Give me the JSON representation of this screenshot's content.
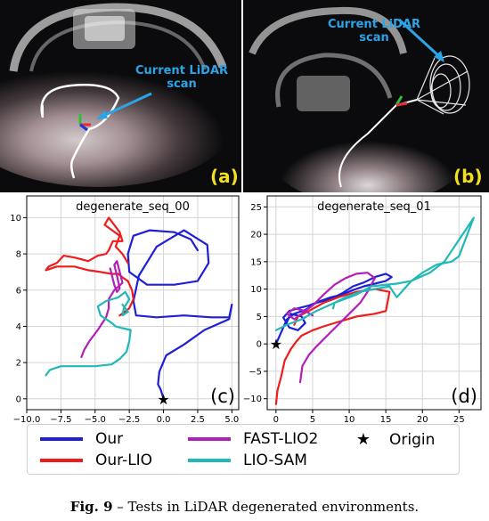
{
  "photos": {
    "a": {
      "scan_label_line1": "Current LiDAR",
      "scan_label_line2": "scan",
      "letter": "(a)"
    },
    "b": {
      "scan_label_line1": "Current LiDAR",
      "scan_label_line2": "scan",
      "letter": "(b)"
    }
  },
  "colors": {
    "Our": "#1f1fd6",
    "Our-LIO": "#ee1c1c",
    "FAST-LIO2": "#b21fb8",
    "LIO-SAM": "#22b8b8",
    "label_blue": "#2aa5e8",
    "letter_yellow": "#f2df20"
  },
  "chart_data": [
    {
      "type": "line",
      "title": "degenerate_seq_00",
      "panel_label": "(c)",
      "xlim": [
        -10,
        5.5
      ],
      "ylim": [
        -0.6,
        11.2
      ],
      "xticks": [
        -10.0,
        -7.5,
        -5.0,
        -2.5,
        0.0,
        2.5,
        5.0
      ],
      "xtick_labels": [
        "−10.0",
        "−7.5",
        "−5.0",
        "−2.5",
        "0.0",
        "2.5",
        "5.0"
      ],
      "yticks": [
        0,
        2,
        4,
        6,
        8,
        10
      ],
      "grid": true,
      "series": [
        {
          "name": "Our",
          "x": [
            0.0,
            -0.2,
            -0.4,
            -0.3,
            0.2,
            1.5,
            3.0,
            4.8,
            5.0,
            4.8,
            3.5,
            1.5,
            -0.5,
            -2.0,
            -2.2,
            -1.8,
            -0.5,
            1.5,
            3.2,
            3.3,
            2.5,
            0.8,
            -1.2,
            -2.5,
            -2.6,
            -2.2,
            -1.0,
            0.8,
            2.0,
            2.5
          ],
          "y": [
            0.0,
            0.5,
            0.8,
            1.5,
            2.4,
            3.0,
            3.8,
            4.4,
            5.2,
            4.5,
            4.5,
            4.6,
            4.5,
            4.6,
            5.4,
            6.8,
            8.4,
            9.3,
            8.5,
            7.5,
            6.5,
            6.3,
            6.3,
            7.0,
            8.0,
            9.0,
            9.3,
            9.2,
            8.8,
            8.2
          ]
        },
        {
          "name": "Our-LIO",
          "x": [
            -2.6,
            -3.0,
            -3.5,
            -3.2,
            -4.3,
            -4.0,
            -3.2,
            -3.0,
            -3.7,
            -4.0,
            -4.2,
            -4.8,
            -5.5,
            -6.5,
            -7.3,
            -7.8,
            -8.4,
            -8.6,
            -7.8,
            -6.5,
            -5.5,
            -4.6,
            -3.8,
            -3.3,
            -3.0,
            -2.6,
            -2.3,
            -2.2,
            -2.5,
            -3.2
          ],
          "y": [
            7.5,
            8.0,
            8.4,
            9.0,
            9.6,
            10.0,
            9.2,
            8.7,
            8.7,
            8.2,
            8.0,
            7.9,
            7.6,
            7.8,
            7.9,
            7.5,
            7.3,
            7.1,
            7.3,
            7.3,
            7.1,
            7.0,
            6.9,
            6.9,
            6.7,
            6.5,
            6.0,
            5.5,
            5.0,
            4.6
          ]
        },
        {
          "name": "FAST-LIO2",
          "x": [
            -6.0,
            -5.8,
            -5.4,
            -4.8,
            -4.2,
            -4.0,
            -4.0,
            -3.6,
            -3.0,
            -3.2,
            -3.4,
            -3.6,
            -3.4,
            -3.2,
            -3.4,
            -3.6,
            -3.9
          ],
          "y": [
            2.3,
            2.7,
            3.2,
            3.8,
            4.5,
            5.0,
            5.5,
            6.0,
            6.4,
            7.0,
            7.6,
            7.4,
            6.8,
            6.1,
            5.9,
            6.3,
            7.2
          ]
        },
        {
          "name": "LIO-SAM",
          "x": [
            -8.6,
            -8.3,
            -7.5,
            -6.5,
            -5.0,
            -3.8,
            -3.2,
            -2.7,
            -2.5,
            -2.4,
            -3.0,
            -3.5,
            -3.8,
            -4.6,
            -4.8,
            -4.2,
            -3.3,
            -2.8,
            -2.5,
            -2.9,
            -3.0,
            -2.6,
            -3.0
          ],
          "y": [
            1.3,
            1.6,
            1.8,
            1.8,
            1.8,
            1.9,
            2.2,
            2.6,
            3.2,
            3.8,
            3.9,
            4.0,
            4.2,
            4.6,
            5.1,
            5.4,
            5.6,
            5.9,
            5.5,
            5.0,
            4.6,
            4.8,
            5.2
          ]
        }
      ],
      "markers": [
        {
          "name": "Origin",
          "x": 0,
          "y": 0
        }
      ]
    },
    {
      "type": "line",
      "title": "degenerate_seq_01",
      "panel_label": "(d)",
      "xlim": [
        -1.2,
        28
      ],
      "ylim": [
        -12,
        27
      ],
      "xticks": [
        0,
        5,
        10,
        15,
        20,
        25
      ],
      "xtick_labels": [
        "0",
        "5",
        "10",
        "15",
        "20",
        "25"
      ],
      "yticks": [
        -10,
        -5,
        0,
        5,
        10,
        15,
        20,
        25
      ],
      "ytick_labels": [
        "−10",
        "−5",
        "0",
        "5",
        "10",
        "15",
        "20",
        "25"
      ],
      "grid": true,
      "series": [
        {
          "name": "Our",
          "x": [
            0.0,
            0.5,
            1.0,
            1.5,
            2.5,
            4.0,
            5.5,
            7.5,
            9.0,
            10.5,
            12.0,
            13.5,
            15.0,
            15.8,
            15.0,
            13.5,
            12.0,
            10.5,
            9.0,
            7.5,
            6.0,
            4.5,
            3.0,
            1.8,
            1.0,
            1.8,
            3.0,
            4.0,
            3.5,
            2.0,
            1.5
          ],
          "y": [
            0.0,
            1.5,
            3.0,
            4.5,
            5.5,
            6.2,
            7.5,
            8.2,
            9.2,
            10.5,
            11.2,
            12.2,
            12.8,
            12.2,
            11.5,
            11.0,
            10.5,
            9.8,
            9.0,
            8.5,
            7.8,
            7.0,
            6.5,
            6.0,
            4.8,
            3.0,
            2.5,
            3.8,
            5.0,
            5.5,
            4.0
          ]
        },
        {
          "name": "Our-LIO",
          "x": [
            0.0,
            0.2,
            0.7,
            1.2,
            2.0,
            2.8,
            3.5,
            5.0,
            6.5,
            8.5,
            11.0,
            13.5,
            15.0,
            15.3,
            15.5,
            13.5,
            11.0,
            8.5,
            6.5,
            4.5,
            3.0,
            2.5
          ],
          "y": [
            -11.0,
            -8.5,
            -6.0,
            -3.0,
            -1.0,
            0.5,
            1.5,
            2.5,
            3.2,
            4.0,
            5.0,
            5.5,
            6.0,
            8.0,
            9.5,
            10.0,
            9.5,
            8.5,
            7.5,
            6.0,
            5.0,
            3.5
          ]
        },
        {
          "name": "FAST-LIO2",
          "x": [
            3.3,
            3.6,
            4.5,
            5.5,
            7.0,
            8.5,
            10.0,
            11.5,
            12.5,
            13.5,
            12.5,
            11.0,
            9.5,
            8.0,
            6.5,
            5.0,
            3.5,
            2.5,
            1.5,
            2.5,
            4.0,
            5.0
          ],
          "y": [
            -7.0,
            -4.0,
            -2.0,
            -0.5,
            1.5,
            3.5,
            5.5,
            7.5,
            9.5,
            12.0,
            13.0,
            12.8,
            12.0,
            10.8,
            9.0,
            7.0,
            5.5,
            4.5,
            5.5,
            6.5,
            6.0,
            5.2
          ]
        },
        {
          "name": "LIO-SAM",
          "x": [
            0.0,
            1.5,
            3.5,
            5.5,
            8.0,
            11.0,
            13.0,
            16.5,
            18.5,
            21.0,
            23.0,
            24.5,
            26.0,
            27.0,
            25.0,
            24.0,
            22.0,
            20.0,
            18.5,
            17.5,
            16.5,
            15.5,
            13.5,
            11.5,
            9.5,
            8.0,
            7.8
          ],
          "y": [
            2.5,
            3.5,
            4.5,
            6.0,
            7.5,
            9.0,
            10.5,
            11.0,
            11.5,
            13.0,
            15.0,
            18.0,
            21.0,
            23.0,
            16.0,
            15.0,
            14.5,
            13.0,
            11.5,
            10.0,
            8.5,
            10.5,
            10.0,
            9.5,
            8.5,
            7.5,
            6.5
          ]
        }
      ],
      "markers": [
        {
          "name": "Origin",
          "x": 0,
          "y": 0
        }
      ]
    }
  ],
  "legend": [
    {
      "key": "Our",
      "label": "Our"
    },
    {
      "key": "Our-LIO",
      "label": "Our-LIO"
    },
    {
      "key": "FAST-LIO2",
      "label": "FAST-LIO2"
    },
    {
      "key": "LIO-SAM",
      "label": "LIO-SAM"
    },
    {
      "key": "Origin",
      "label": "Origin",
      "symbol": "★"
    }
  ],
  "caption": {
    "fig": "Fig. 9",
    "text": " – Tests in LiDAR degenerated environments."
  }
}
